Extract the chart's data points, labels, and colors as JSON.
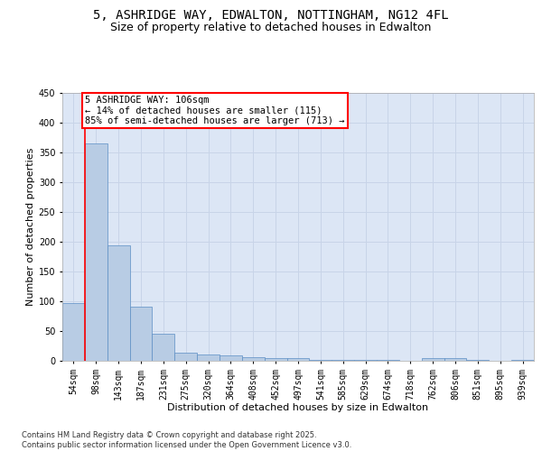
{
  "title1": "5, ASHRIDGE WAY, EDWALTON, NOTTINGHAM, NG12 4FL",
  "title2": "Size of property relative to detached houses in Edwalton",
  "xlabel": "Distribution of detached houses by size in Edwalton",
  "ylabel": "Number of detached properties",
  "categories": [
    "54sqm",
    "98sqm",
    "143sqm",
    "187sqm",
    "231sqm",
    "275sqm",
    "320sqm",
    "364sqm",
    "408sqm",
    "452sqm",
    "497sqm",
    "541sqm",
    "585sqm",
    "629sqm",
    "674sqm",
    "718sqm",
    "762sqm",
    "806sqm",
    "851sqm",
    "895sqm",
    "939sqm"
  ],
  "values": [
    97,
    365,
    193,
    91,
    46,
    13,
    10,
    9,
    6,
    5,
    4,
    1,
    1,
    1,
    1,
    0,
    4,
    4,
    1,
    0,
    2
  ],
  "bar_color": "#b8cce4",
  "bar_edge_color": "#5b8ec4",
  "annotation_text": "5 ASHRIDGE WAY: 106sqm\n← 14% of detached houses are smaller (115)\n85% of semi-detached houses are larger (713) →",
  "grid_color": "#c8d4e8",
  "background_color": "#dce6f5",
  "footer_text": "Contains HM Land Registry data © Crown copyright and database right 2025.\nContains public sector information licensed under the Open Government Licence v3.0.",
  "ylim": [
    0,
    450
  ],
  "yticks": [
    0,
    50,
    100,
    150,
    200,
    250,
    300,
    350,
    400,
    450
  ],
  "title1_fontsize": 10,
  "title2_fontsize": 9,
  "axis_fontsize": 8,
  "tick_fontsize": 7,
  "footer_fontsize": 6
}
